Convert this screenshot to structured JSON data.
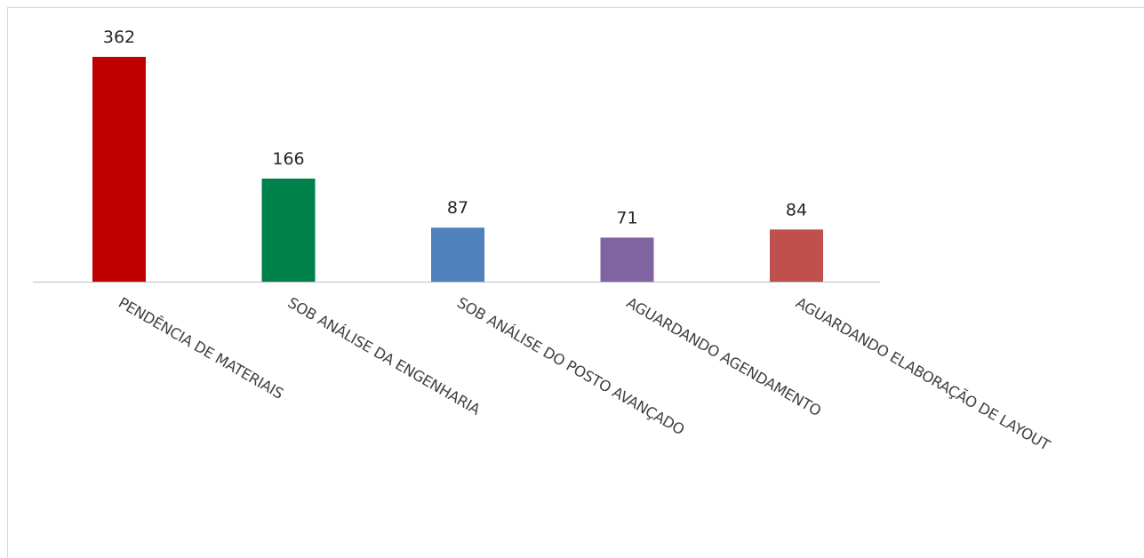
{
  "chart_data": {
    "type": "bar",
    "categories": [
      "PENDÊNCIA DE MATERIAIS",
      "SOB ANÁLISE DA ENGENHARIA",
      "SOB ANÁLISE DO POSTO AVANÇADO",
      "AGUARDANDO AGENDAMENTO",
      "AGUARDANDO ELABORAÇÃO DE LAYOUT"
    ],
    "values": [
      362,
      166,
      87,
      71,
      84
    ],
    "colors": [
      "#c00000",
      "#00804a",
      "#4f81bd",
      "#8064a2",
      "#c0504d"
    ],
    "data_labels": true,
    "ylim": [
      0,
      362
    ],
    "grid": false,
    "legend": "none"
  }
}
